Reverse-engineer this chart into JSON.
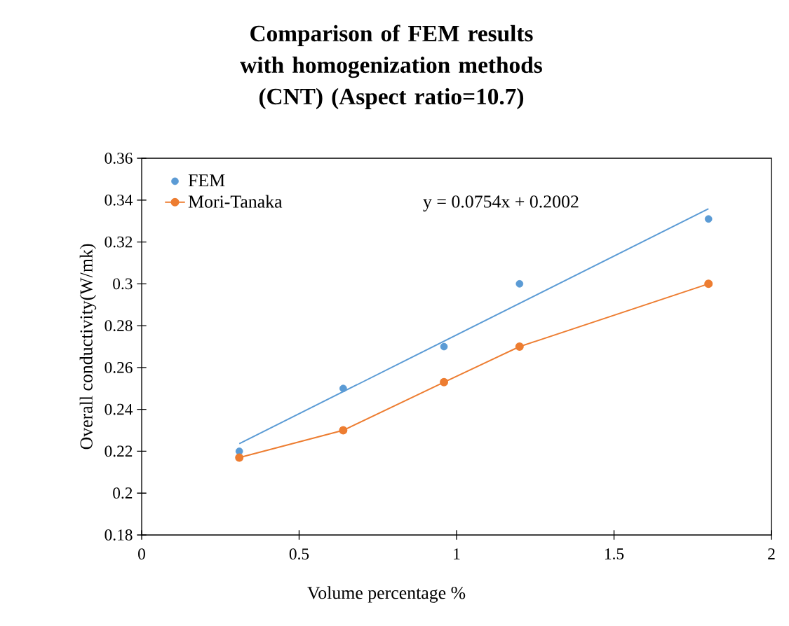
{
  "chart_data": {
    "type": "line",
    "title": "Comparison of FEM results with homogenization methods (CNT) (Aspect ratio=10.7)",
    "xlabel": "Volume percentage  %",
    "ylabel": "Overall conductivity(W/mk)",
    "x": [
      0.31,
      0.64,
      0.96,
      1.2,
      1.8
    ],
    "series": [
      {
        "name": "FEM",
        "type": "scatter",
        "marker": "circle",
        "color": "#5b9bd5",
        "values": [
          0.22,
          0.25,
          0.27,
          0.3,
          0.331
        ]
      },
      {
        "name": "Mori-Tanaka",
        "type": "line",
        "marker": "circle",
        "color": "#ed7d31",
        "values": [
          0.217,
          0.23,
          0.253,
          0.27,
          0.3
        ]
      },
      {
        "type": "line",
        "marker": "none",
        "color": "#5b9bd5",
        "x": [
          0.31,
          1.8
        ],
        "values": [
          0.2236,
          0.3359
        ]
      }
    ],
    "annotations": [
      "y = 0.0754x + 0.2002"
    ],
    "xlim": [
      0,
      2
    ],
    "ylim": [
      0.18,
      0.36
    ],
    "xticks": [
      0,
      0.5,
      1,
      1.5,
      2
    ],
    "yticks": [
      0.18,
      0.2,
      0.22,
      0.24,
      0.26,
      0.28,
      0.3,
      0.32,
      0.34,
      0.36
    ],
    "grid": false,
    "legend": "top left"
  }
}
